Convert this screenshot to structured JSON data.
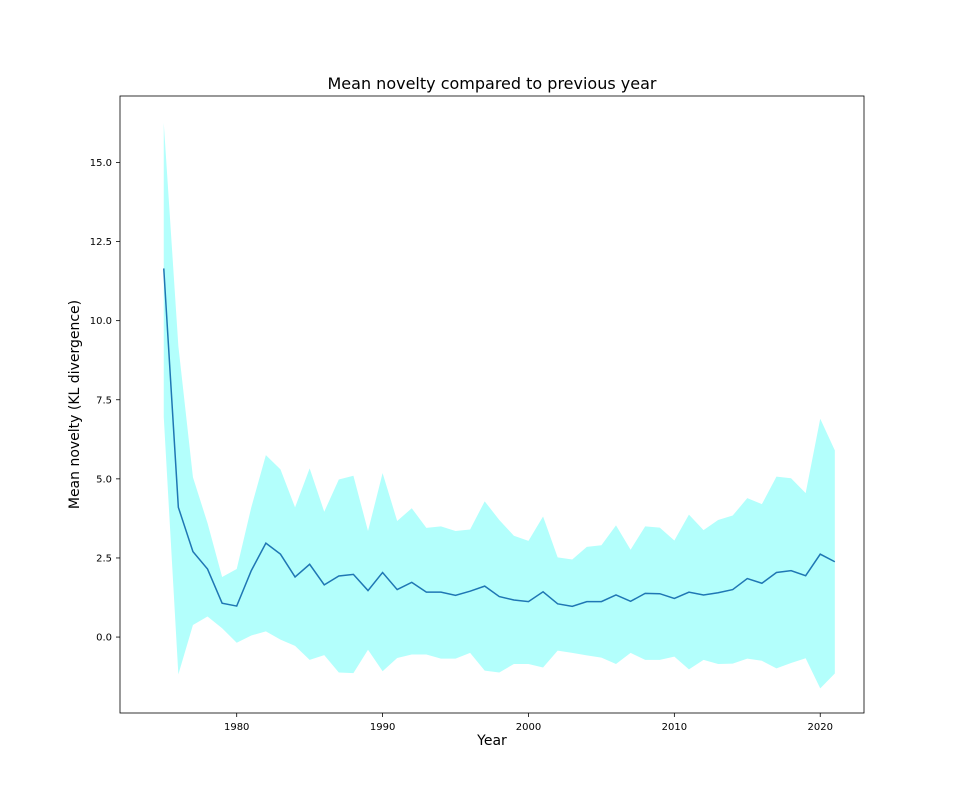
{
  "chart_data": {
    "type": "line",
    "title": "Mean novelty compared to previous year",
    "xlabel": "Year",
    "ylabel": "Mean novelty (KL divergence)",
    "xlim": [
      1972,
      2023
    ],
    "ylim": [
      -2.4,
      17.1
    ],
    "xticks": [
      1980,
      1990,
      2000,
      2010,
      2020
    ],
    "yticks": [
      0.0,
      2.5,
      5.0,
      7.5,
      10.0,
      12.5,
      15.0
    ],
    "ytick_labels": [
      "0.0",
      "2.5",
      "5.0",
      "7.5",
      "10.0",
      "12.5",
      "15.0"
    ],
    "grid": false,
    "line_color": "#1f77b4",
    "band_color": "#b3fffc",
    "series": [
      {
        "x": [
          1975,
          1976,
          1977,
          1978,
          1979,
          1980,
          1981,
          1982,
          1983,
          1984,
          1985,
          1986,
          1987,
          1988,
          1989,
          1990,
          1991,
          1992,
          1993,
          1994,
          1995,
          1996,
          1997,
          1998,
          1999,
          2000,
          2001,
          2002,
          2003,
          2004,
          2005,
          2006,
          2007,
          2008,
          2009,
          2010,
          2011,
          2012,
          2013,
          2014,
          2015,
          2016,
          2017,
          2018,
          2019,
          2020,
          2021
        ],
        "mean": [
          11.65,
          4.1,
          2.7,
          2.15,
          1.07,
          0.98,
          2.1,
          2.97,
          2.62,
          1.9,
          2.3,
          1.65,
          1.93,
          1.98,
          1.47,
          2.04,
          1.5,
          1.73,
          1.42,
          1.42,
          1.32,
          1.45,
          1.61,
          1.28,
          1.17,
          1.12,
          1.43,
          1.05,
          0.97,
          1.12,
          1.12,
          1.33,
          1.13,
          1.38,
          1.37,
          1.22,
          1.42,
          1.33,
          1.4,
          1.5,
          1.85,
          1.7,
          2.04,
          2.1,
          1.94,
          2.62,
          2.38
        ],
        "upper": [
          16.25,
          9.2,
          5.05,
          3.6,
          1.9,
          2.15,
          4.1,
          5.75,
          5.3,
          4.1,
          5.33,
          3.96,
          4.98,
          5.1,
          3.35,
          5.18,
          3.67,
          4.07,
          3.45,
          3.5,
          3.35,
          3.4,
          4.29,
          3.7,
          3.2,
          3.04,
          3.81,
          2.52,
          2.45,
          2.85,
          2.9,
          3.53,
          2.76,
          3.5,
          3.46,
          3.05,
          3.87,
          3.38,
          3.7,
          3.84,
          4.39,
          4.2,
          5.07,
          5.02,
          4.55,
          6.9,
          5.9
        ],
        "lower": [
          6.95,
          -1.18,
          0.38,
          0.65,
          0.28,
          -0.18,
          0.05,
          0.18,
          -0.08,
          -0.28,
          -0.72,
          -0.57,
          -1.12,
          -1.14,
          -0.4,
          -1.08,
          -0.66,
          -0.55,
          -0.55,
          -0.68,
          -0.68,
          -0.5,
          -1.06,
          -1.12,
          -0.85,
          -0.85,
          -0.96,
          -0.43,
          -0.5,
          -0.58,
          -0.65,
          -0.85,
          -0.5,
          -0.72,
          -0.72,
          -0.62,
          -1.02,
          -0.72,
          -0.85,
          -0.84,
          -0.68,
          -0.75,
          -0.99,
          -0.82,
          -0.67,
          -1.62,
          -1.15
        ]
      }
    ]
  }
}
